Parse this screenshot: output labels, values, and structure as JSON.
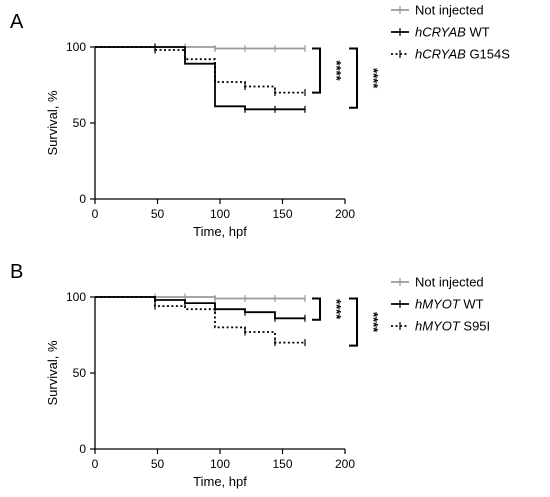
{
  "chart_data": [
    {
      "type": "line",
      "subtype": "kaplan-meier-survival",
      "panel": "A",
      "xlabel": "Time, hpf",
      "ylabel": "Survival, %",
      "xlim": [
        0,
        200
      ],
      "ylim": [
        0,
        100
      ],
      "xticks": [
        "0",
        "50",
        "100",
        "150",
        "200"
      ],
      "yticks": [
        "0",
        "50",
        "100"
      ],
      "grid": false,
      "legend_position": "right",
      "series": [
        {
          "name": "Not injected",
          "name_italic": "",
          "name_suffix": "",
          "line_style": "solid",
          "color": "#9a9a9a",
          "steps": [
            [
              0,
              100
            ],
            [
              96,
              99
            ],
            [
              168,
              99
            ]
          ],
          "censor_marks": [
            48,
            72,
            96,
            120,
            144,
            168
          ]
        },
        {
          "name": "hCRYAB WT",
          "name_italic": "hCRYAB",
          "name_suffix": " WT",
          "line_style": "solid",
          "color": "#000000",
          "steps": [
            [
              0,
              100
            ],
            [
              72,
              89
            ],
            [
              96,
              61
            ],
            [
              120,
              59
            ],
            [
              168,
              59
            ]
          ],
          "censor_marks": [
            48,
            120,
            144,
            168
          ]
        },
        {
          "name": "hCRYAB G154S",
          "name_italic": "hCRYAB",
          "name_suffix": " G154S",
          "line_style": "dotted",
          "color": "#000000",
          "steps": [
            [
              0,
              100
            ],
            [
              48,
              98
            ],
            [
              72,
              92
            ],
            [
              96,
              77
            ],
            [
              120,
              74
            ],
            [
              144,
              70
            ],
            [
              168,
              70
            ]
          ],
          "censor_marks": [
            48,
            120,
            144,
            168
          ]
        }
      ],
      "significance": [
        {
          "label": "****",
          "from": 99,
          "to": 70
        },
        {
          "label": "****",
          "from": 99,
          "to": 60
        }
      ]
    },
    {
      "type": "line",
      "subtype": "kaplan-meier-survival",
      "panel": "B",
      "xlabel": "Time, hpf",
      "ylabel": "Survival, %",
      "xlim": [
        0,
        200
      ],
      "ylim": [
        0,
        100
      ],
      "xticks": [
        "0",
        "50",
        "100",
        "150",
        "200"
      ],
      "yticks": [
        "0",
        "50",
        "100"
      ],
      "grid": false,
      "legend_position": "right",
      "series": [
        {
          "name": "Not injected",
          "name_italic": "",
          "name_suffix": "",
          "line_style": "solid",
          "color": "#9a9a9a",
          "steps": [
            [
              0,
              100
            ],
            [
              96,
              99
            ],
            [
              168,
              99
            ]
          ],
          "censor_marks": [
            48,
            72,
            96,
            120,
            144,
            168
          ]
        },
        {
          "name": "hMYOT WT",
          "name_italic": "hMYOT",
          "name_suffix": " WT",
          "line_style": "solid",
          "color": "#000000",
          "steps": [
            [
              0,
              100
            ],
            [
              48,
              98
            ],
            [
              72,
              96
            ],
            [
              96,
              92
            ],
            [
              120,
              90
            ],
            [
              144,
              86
            ],
            [
              168,
              86
            ]
          ],
          "censor_marks": [
            48,
            72,
            96,
            120,
            144,
            168
          ]
        },
        {
          "name": "hMYOT S95I",
          "name_italic": "hMYOT",
          "name_suffix": " S95I",
          "line_style": "dotted",
          "color": "#000000",
          "steps": [
            [
              0,
              100
            ],
            [
              48,
              94
            ],
            [
              72,
              92
            ],
            [
              96,
              80
            ],
            [
              120,
              77
            ],
            [
              144,
              70
            ],
            [
              168,
              70
            ]
          ],
          "censor_marks": [
            48,
            120,
            144,
            168
          ]
        }
      ],
      "significance": [
        {
          "label": "****",
          "from": 99,
          "to": 85
        },
        {
          "label": "****",
          "from": 99,
          "to": 68
        }
      ]
    }
  ]
}
